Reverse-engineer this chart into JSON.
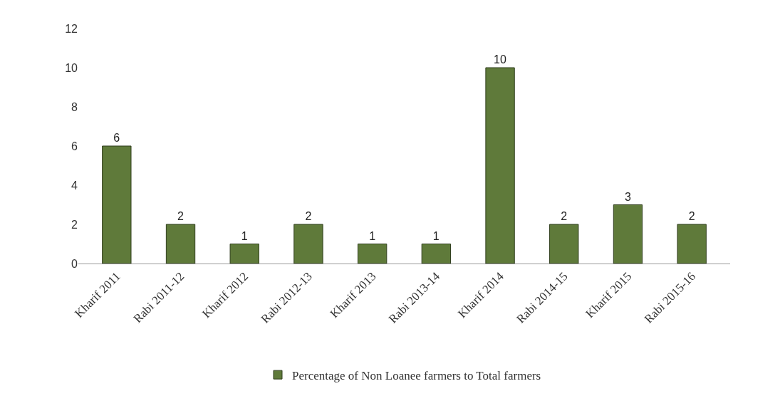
{
  "chart_data": {
    "type": "bar",
    "categories": [
      "Kharif 2011",
      "Rabi 2011-12",
      "Kharif 2012",
      "Rabi 2012-13",
      "Kharif 2013",
      "Rabi 2013-14",
      "Kharif 2014",
      "Rabi 2014-15",
      "Kharif 2015",
      "Rabi 2015-16"
    ],
    "series": [
      {
        "name": "Percentage of Non Loanee farmers to Total farmers",
        "color": "#5f7a3a",
        "values": [
          6,
          2,
          1,
          2,
          1,
          1,
          10,
          2,
          3,
          2
        ]
      }
    ],
    "ylim": [
      0,
      12
    ],
    "yticks": [
      0,
      2,
      4,
      6,
      8,
      10,
      12
    ],
    "legend": "bottom",
    "data_labels": true
  }
}
